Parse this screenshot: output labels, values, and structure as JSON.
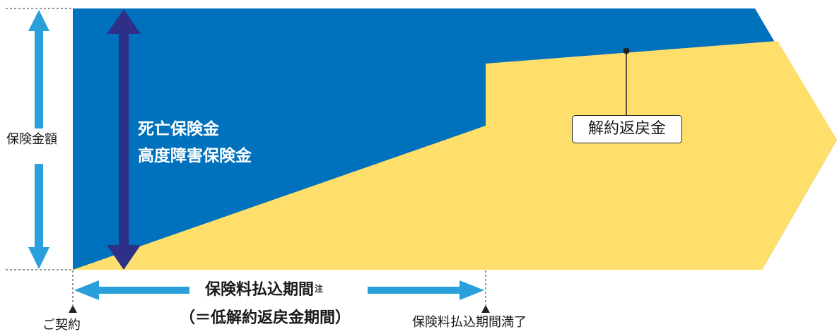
{
  "labels": {
    "sum_insured": "保険金額",
    "death_benefit_line1": "死亡保険金",
    "death_benefit_line2": "高度障害保険金",
    "surrender_value": "解約返戻金",
    "premium_period": "保険料払込期間",
    "premium_period_note": "注",
    "low_surrender_period": "（＝低解約返戻金期間）",
    "contract_start": "ご契約",
    "premium_period_end": "保険料払込期間満了"
  },
  "colors": {
    "death_area": "#0071BC",
    "surrender_area": "#FFDF6B",
    "sum_arrow": "#29A0DB",
    "death_arrow": "#2E3087",
    "period_arrow": "#29A0DB",
    "guide_line": "#555555"
  }
}
